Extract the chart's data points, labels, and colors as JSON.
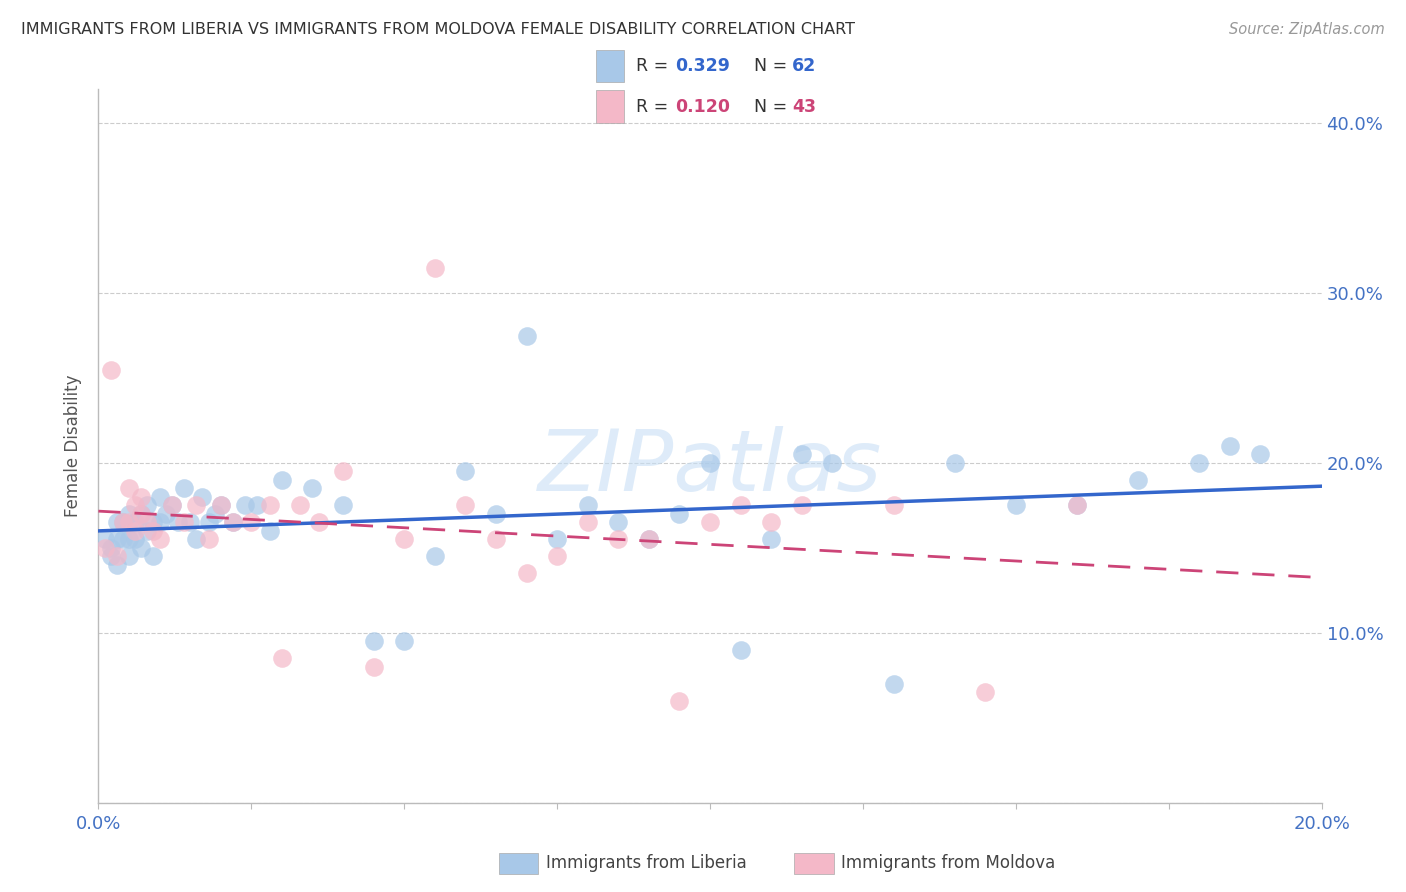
{
  "title": "IMMIGRANTS FROM LIBERIA VS IMMIGRANTS FROM MOLDOVA FEMALE DISABILITY CORRELATION CHART",
  "source": "Source: ZipAtlas.com",
  "ylabel": "Female Disability",
  "xlim": [
    0.0,
    0.2
  ],
  "ylim": [
    0.0,
    0.42
  ],
  "liberia_color": "#a8c8e8",
  "moldova_color": "#f4b8c8",
  "trend_liberia_color": "#3366cc",
  "trend_moldova_color": "#cc4477",
  "R_liberia": 0.329,
  "N_liberia": 62,
  "R_moldova": 0.12,
  "N_moldova": 43,
  "watermark": "ZIPatlas",
  "background_color": "#ffffff",
  "grid_color": "#cccccc",
  "liberia_x": [
    0.001,
    0.002,
    0.002,
    0.003,
    0.003,
    0.003,
    0.004,
    0.004,
    0.005,
    0.005,
    0.005,
    0.006,
    0.006,
    0.007,
    0.007,
    0.008,
    0.008,
    0.009,
    0.009,
    0.01,
    0.01,
    0.011,
    0.012,
    0.013,
    0.014,
    0.015,
    0.016,
    0.017,
    0.018,
    0.019,
    0.02,
    0.022,
    0.024,
    0.026,
    0.028,
    0.03,
    0.035,
    0.04,
    0.045,
    0.05,
    0.055,
    0.06,
    0.065,
    0.07,
    0.075,
    0.08,
    0.085,
    0.09,
    0.095,
    0.1,
    0.105,
    0.11,
    0.115,
    0.12,
    0.13,
    0.14,
    0.15,
    0.16,
    0.17,
    0.18,
    0.185,
    0.19
  ],
  "liberia_y": [
    0.155,
    0.15,
    0.145,
    0.155,
    0.165,
    0.14,
    0.155,
    0.165,
    0.145,
    0.155,
    0.17,
    0.155,
    0.165,
    0.15,
    0.17,
    0.16,
    0.175,
    0.165,
    0.145,
    0.165,
    0.18,
    0.17,
    0.175,
    0.165,
    0.185,
    0.165,
    0.155,
    0.18,
    0.165,
    0.17,
    0.175,
    0.165,
    0.175,
    0.175,
    0.16,
    0.19,
    0.185,
    0.175,
    0.095,
    0.095,
    0.145,
    0.195,
    0.17,
    0.275,
    0.155,
    0.175,
    0.165,
    0.155,
    0.17,
    0.2,
    0.09,
    0.155,
    0.205,
    0.2,
    0.07,
    0.2,
    0.175,
    0.175,
    0.19,
    0.2,
    0.21,
    0.205
  ],
  "moldova_x": [
    0.001,
    0.002,
    0.003,
    0.004,
    0.005,
    0.005,
    0.006,
    0.006,
    0.007,
    0.007,
    0.008,
    0.009,
    0.01,
    0.012,
    0.014,
    0.016,
    0.018,
    0.02,
    0.022,
    0.025,
    0.028,
    0.03,
    0.033,
    0.036,
    0.04,
    0.045,
    0.05,
    0.055,
    0.06,
    0.065,
    0.07,
    0.075,
    0.08,
    0.085,
    0.09,
    0.095,
    0.1,
    0.105,
    0.11,
    0.115,
    0.13,
    0.145,
    0.16
  ],
  "moldova_y": [
    0.15,
    0.255,
    0.145,
    0.165,
    0.185,
    0.165,
    0.175,
    0.16,
    0.18,
    0.17,
    0.165,
    0.16,
    0.155,
    0.175,
    0.165,
    0.175,
    0.155,
    0.175,
    0.165,
    0.165,
    0.175,
    0.085,
    0.175,
    0.165,
    0.195,
    0.08,
    0.155,
    0.315,
    0.175,
    0.155,
    0.135,
    0.145,
    0.165,
    0.155,
    0.155,
    0.06,
    0.165,
    0.175,
    0.165,
    0.175,
    0.175,
    0.065,
    0.175
  ]
}
